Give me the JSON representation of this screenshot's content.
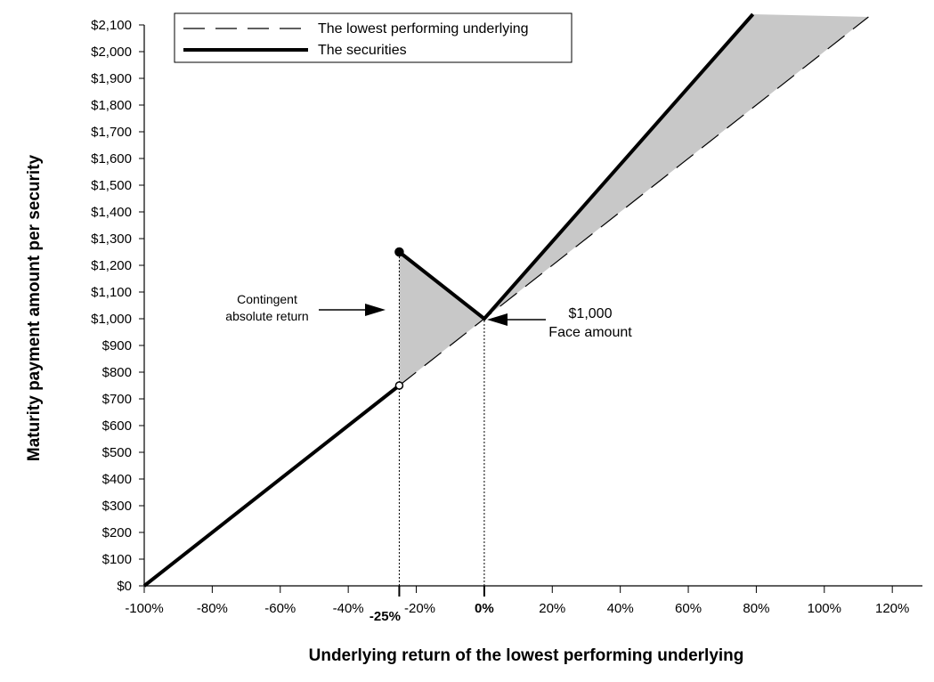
{
  "chart_data": {
    "type": "line",
    "xlabel": "Underlying return of the lowest performing underlying",
    "ylabel": "Maturity payment amount per security",
    "xlim": [
      -100,
      120
    ],
    "ylim": [
      0,
      2100
    ],
    "x_ticks": [
      {
        "value": -100,
        "label": "-100%"
      },
      {
        "value": -80,
        "label": "-80%"
      },
      {
        "value": -60,
        "label": "-60%"
      },
      {
        "value": -40,
        "label": "-40%"
      },
      {
        "value": -20,
        "label": "-20%"
      },
      {
        "value": 0,
        "label": "0%"
      },
      {
        "value": 20,
        "label": "20%"
      },
      {
        "value": 40,
        "label": "40%"
      },
      {
        "value": 60,
        "label": "60%"
      },
      {
        "value": 80,
        "label": "80%"
      },
      {
        "value": 100,
        "label": "100%"
      },
      {
        "value": 120,
        "label": "120%"
      }
    ],
    "y_ticks": [
      {
        "value": 0,
        "label": "$0"
      },
      {
        "value": 100,
        "label": "$100"
      },
      {
        "value": 200,
        "label": "$200"
      },
      {
        "value": 300,
        "label": "$300"
      },
      {
        "value": 400,
        "label": "$400"
      },
      {
        "value": 500,
        "label": "$500"
      },
      {
        "value": 600,
        "label": "$600"
      },
      {
        "value": 700,
        "label": "$700"
      },
      {
        "value": 800,
        "label": "$800"
      },
      {
        "value": 900,
        "label": "$900"
      },
      {
        "value": 1000,
        "label": "$1,000"
      },
      {
        "value": 1100,
        "label": "$1,100"
      },
      {
        "value": 1200,
        "label": "$1,200"
      },
      {
        "value": 1300,
        "label": "$1,300"
      },
      {
        "value": 1400,
        "label": "$1,400"
      },
      {
        "value": 1500,
        "label": "$1,500"
      },
      {
        "value": 1600,
        "label": "$1,600"
      },
      {
        "value": 1700,
        "label": "$1,700"
      },
      {
        "value": 1800,
        "label": "$1,800"
      },
      {
        "value": 1900,
        "label": "$1,900"
      },
      {
        "value": 2000,
        "label": "$2,000"
      },
      {
        "value": 2100,
        "label": "$2,100"
      }
    ],
    "series": [
      {
        "name": "The lowest performing underlying",
        "style": "dashed",
        "color": "#000000",
        "points": [
          [
            -25,
            750
          ],
          [
            113,
            2130
          ]
        ]
      },
      {
        "name": "The securities",
        "style": "solid",
        "color": "#000000",
        "segments": [
          [
            [
              -100,
              0
            ],
            [
              -25,
              750
            ]
          ],
          [
            [
              -25,
              1250
            ],
            [
              0,
              1000
            ],
            [
              79,
              2140
            ]
          ]
        ],
        "markers": [
          {
            "x": -25,
            "y": 1250,
            "fill": "filled"
          },
          {
            "x": -25,
            "y": 750,
            "fill": "open"
          }
        ]
      }
    ],
    "shaded_regions": [
      {
        "label": "Contingent absolute return",
        "color": "#c8c8c8",
        "points": [
          [
            -25,
            750
          ],
          [
            -25,
            1250
          ],
          [
            0,
            1000
          ]
        ]
      },
      {
        "color": "#c8c8c8",
        "points": [
          [
            0,
            1000
          ],
          [
            79,
            2140
          ],
          [
            113,
            2130
          ]
        ]
      }
    ],
    "reference_lines": [
      {
        "x": -25,
        "label": "-25%",
        "style": "dotted"
      },
      {
        "x": 0,
        "label": "0%",
        "style": "dotted"
      }
    ],
    "annotations": [
      {
        "lines": [
          "Contingent",
          "absolute return"
        ],
        "target": {
          "x": -27,
          "y": 1000
        }
      },
      {
        "lines": [
          "$1,000",
          "Face amount"
        ],
        "target": {
          "x": 0,
          "y": 1000
        }
      }
    ],
    "legend": {
      "position": "top-left",
      "entries": [
        {
          "label": "The lowest performing underlying",
          "style": "dashed"
        },
        {
          "label": "The securities",
          "style": "solid"
        }
      ]
    },
    "colors": {
      "line": "#000000",
      "shade": "#c8c8c8",
      "background": "#ffffff"
    }
  }
}
